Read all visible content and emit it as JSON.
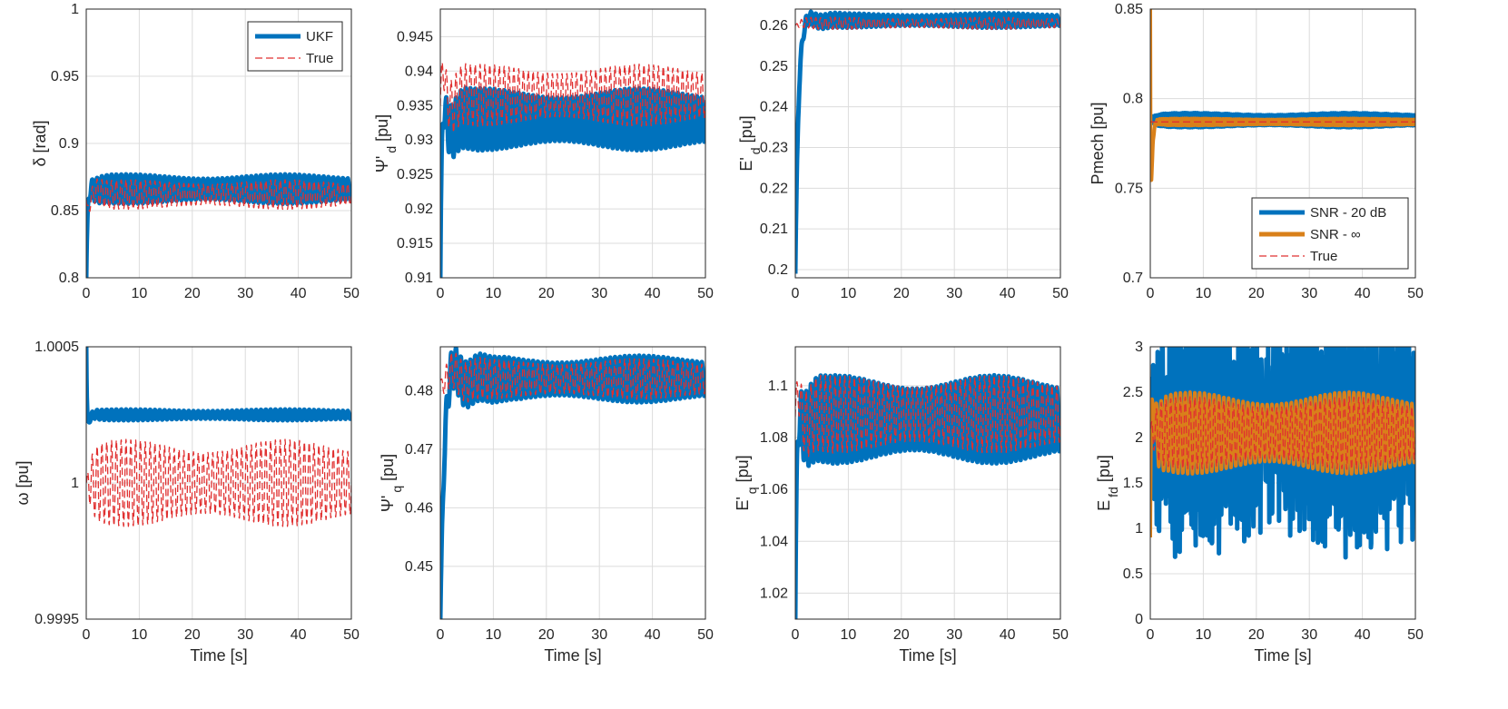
{
  "chart_data": [
    {
      "id": "delta",
      "type": "line",
      "xlabel": "",
      "ylabel": "δ [rad]",
      "xlim": [
        0,
        50
      ],
      "ylim": [
        0.8,
        1
      ],
      "xticks": [
        "0",
        "10",
        "20",
        "30",
        "40",
        "50"
      ],
      "yticks": [
        "0.8",
        "0.85",
        "0.9",
        "0.95",
        "1"
      ],
      "legend": {
        "position": "top-right",
        "entries": [
          "UKF",
          "True"
        ]
      },
      "series": [
        {
          "name": "UKF",
          "color": "#0072BD",
          "style": "solid",
          "y0": 0.8,
          "peak": 0.875,
          "settle": 0.866,
          "amp": 0.011,
          "tau": 1.0,
          "freq": 1.1
        },
        {
          "name": "True",
          "color": "#e03030",
          "style": "dashed",
          "y0": 0.858,
          "peak": 0.838,
          "settle": 0.862,
          "amp": 0.011,
          "tau": 1.0,
          "freq": 1.1
        }
      ]
    },
    {
      "id": "psid",
      "type": "line",
      "xlabel": "",
      "ylabel": "Ψ'",
      "ylabel_sub": "d",
      "ylabel_unit": "[pu]",
      "xlim": [
        0,
        50
      ],
      "ylim": [
        0.91,
        0.949
      ],
      "xticks": [
        "0",
        "10",
        "20",
        "30",
        "40",
        "50"
      ],
      "yticks": [
        "0.91",
        "0.915",
        "0.92",
        "0.925",
        "0.93",
        "0.935",
        "0.94",
        "0.945"
      ],
      "series": [
        {
          "name": "UKF",
          "color": "#0072BD",
          "style": "solid",
          "y0": 0.91,
          "peak": 0.945,
          "settle": 0.933,
          "amp": 0.0045,
          "tau": 1.2,
          "freq": 1.1
        },
        {
          "name": "True",
          "color": "#e03030",
          "style": "dashed",
          "y0": 0.935,
          "peak": 0.948,
          "settle": 0.9365,
          "amp": 0.0045,
          "tau": 1.2,
          "freq": 1.1
        }
      ]
    },
    {
      "id": "ed",
      "type": "line",
      "xlabel": "",
      "ylabel": "E'",
      "ylabel_sub": "d",
      "ylabel_unit": "[pu]",
      "xlim": [
        0,
        50
      ],
      "ylim": [
        0.198,
        0.264
      ],
      "xticks": [
        "0",
        "10",
        "20",
        "30",
        "40",
        "50"
      ],
      "yticks": [
        "0.2",
        "0.21",
        "0.22",
        "0.23",
        "0.24",
        "0.25",
        "0.26"
      ],
      "series": [
        {
          "name": "UKF",
          "color": "#0072BD",
          "style": "solid",
          "y0": 0.199,
          "peak": 0.258,
          "settle": 0.2612,
          "amp": 0.0018,
          "tau": 2.2,
          "freq": 1.1
        },
        {
          "name": "True",
          "color": "#e03030",
          "style": "dashed",
          "y0": 0.26,
          "peak": 0.26,
          "settle": 0.2605,
          "amp": 0.0015,
          "tau": 2.2,
          "freq": 1.1
        }
      ]
    },
    {
      "id": "pmech",
      "type": "line",
      "xlabel": "",
      "ylabel": "Pmech [pu]",
      "xlim": [
        0,
        50
      ],
      "ylim": [
        0.7,
        0.85
      ],
      "xticks": [
        "0",
        "10",
        "20",
        "30",
        "40",
        "50"
      ],
      "yticks": [
        "0.7",
        "0.75",
        "0.8",
        "0.85"
      ],
      "legend": {
        "position": "bottom-right",
        "entries": [
          "SNR - 20 dB",
          "SNR - ∞",
          "True"
        ]
      },
      "series": [
        {
          "name": "SNR - 20 dB",
          "color": "#0072BD",
          "style": "solid",
          "y0": 0.785,
          "peak": 0.79,
          "settle": 0.788,
          "amp": 0.004,
          "tau": 0.5,
          "freq": 2.5
        },
        {
          "name": "SNR - ∞",
          "color": "#D9801A",
          "style": "solid",
          "y0": 0.85,
          "peak": 0.7,
          "settle": 0.787,
          "amp": 0.002,
          "tau": 0.3,
          "freq": 2.5
        },
        {
          "name": "True",
          "color": "#e03030",
          "style": "dashed",
          "y0": 0.787,
          "peak": 0.787,
          "settle": 0.787,
          "amp": 0.0,
          "tau": 0.3,
          "freq": 1.0
        }
      ]
    },
    {
      "id": "omega",
      "type": "line",
      "xlabel": "Time [s]",
      "ylabel": "ω [pu]",
      "xlim": [
        0,
        50
      ],
      "ylim": [
        0.9995,
        1.0005
      ],
      "xticks": [
        "0",
        "10",
        "20",
        "30",
        "40",
        "50"
      ],
      "yticks": [
        "0.9995",
        "1",
        "1.0005"
      ],
      "series": [
        {
          "name": "UKF",
          "color": "#0072BD",
          "style": "solid",
          "y0": 1.0005,
          "peak": 1.00015,
          "settle": 1.00025,
          "amp": 2e-05,
          "tau": 0.5,
          "freq": 1.1
        },
        {
          "name": "True",
          "color": "#e03030",
          "style": "dashed",
          "y0": 1.0,
          "peak": 1.0,
          "settle": 1.0,
          "amp": 0.00016,
          "tau": 0.5,
          "freq": 1.1
        }
      ]
    },
    {
      "id": "psiq",
      "type": "line",
      "xlabel": "Time [s]",
      "ylabel": "Ψ'",
      "ylabel_sub": "q",
      "ylabel_unit": "[pu]",
      "xlim": [
        0,
        50
      ],
      "ylim": [
        0.441,
        0.4875
      ],
      "xticks": [
        "0",
        "10",
        "20",
        "30",
        "40",
        "50"
      ],
      "yticks": [
        "0.45",
        "0.46",
        "0.47",
        "0.48"
      ],
      "series": [
        {
          "name": "UKF",
          "color": "#0072BD",
          "style": "solid",
          "y0": 0.441,
          "peak": 0.475,
          "settle": 0.482,
          "amp": 0.004,
          "tau": 2.5,
          "freq": 1.1
        },
        {
          "name": "True",
          "color": "#e03030",
          "style": "dashed",
          "y0": 0.482,
          "peak": 0.478,
          "settle": 0.482,
          "amp": 0.0035,
          "tau": 2.5,
          "freq": 1.1
        }
      ]
    },
    {
      "id": "eq",
      "type": "line",
      "xlabel": "Time [s]",
      "ylabel": "E'",
      "ylabel_sub": "q",
      "ylabel_unit": "[pu]",
      "xlim": [
        0,
        50
      ],
      "ylim": [
        1.01,
        1.115
      ],
      "xticks": [
        "0",
        "10",
        "20",
        "30",
        "40",
        "50"
      ],
      "yticks": [
        "1.02",
        "1.04",
        "1.06",
        "1.08",
        "1.1"
      ],
      "series": [
        {
          "name": "UKF",
          "color": "#0072BD",
          "style": "solid",
          "y0": 1.01,
          "peak": 1.11,
          "settle": 1.087,
          "amp": 0.017,
          "tau": 1.2,
          "freq": 1.1
        },
        {
          "name": "True",
          "color": "#e03030",
          "style": "dashed",
          "y0": 1.088,
          "peak": 1.115,
          "settle": 1.089,
          "amp": 0.015,
          "tau": 1.2,
          "freq": 1.1
        }
      ]
    },
    {
      "id": "efd",
      "type": "line",
      "xlabel": "Time [s]",
      "ylabel": "E",
      "ylabel_sub": "fd",
      "ylabel_unit": "[pu]",
      "xlim": [
        0,
        50
      ],
      "ylim": [
        0,
        3
      ],
      "xticks": [
        "0",
        "10",
        "20",
        "30",
        "40",
        "50"
      ],
      "yticks": [
        "0",
        "0.5",
        "1",
        "1.5",
        "2",
        "2.5",
        "3"
      ],
      "series": [
        {
          "name": "SNR - 20 dB",
          "color": "#0072BD",
          "style": "solid",
          "y0": 2.1,
          "peak": 2.1,
          "settle": 2.1,
          "amp": 0.9,
          "tau": 0.5,
          "freq": 2.3,
          "noise": 0.6
        },
        {
          "name": "SNR - ∞",
          "color": "#D9801A",
          "style": "solid",
          "y0": 0.9,
          "peak": 3.0,
          "settle": 2.05,
          "amp": 0.45,
          "tau": 0.6,
          "freq": 1.1
        },
        {
          "name": "True",
          "color": "#e03030",
          "style": "dashed",
          "y0": 2.1,
          "peak": 2.1,
          "settle": 2.05,
          "amp": 0.4,
          "tau": 0.6,
          "freq": 1.1
        }
      ]
    }
  ]
}
